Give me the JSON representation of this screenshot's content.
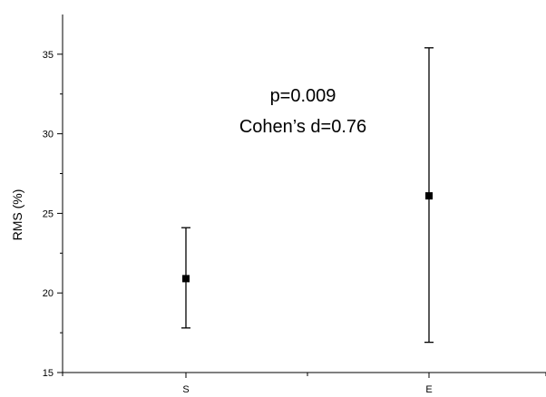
{
  "chart_data": {
    "type": "scatter",
    "title": "",
    "xlabel": "",
    "ylabel": "RMS (%)",
    "categories": [
      "S",
      "E"
    ],
    "ylim": [
      15,
      37
    ],
    "yticks": [
      15,
      20,
      25,
      30,
      35
    ],
    "grid": false,
    "series": [
      {
        "points": [
          {
            "x": "S",
            "y": 20.9,
            "err_low": 17.8,
            "err_high": 24.1
          },
          {
            "x": "E",
            "y": 26.1,
            "err_low": 16.9,
            "err_high": 35.4
          }
        ],
        "color": "#000000",
        "marker": "square"
      }
    ],
    "annotations": [
      "p=0.009",
      "Cohen’s d=0.76"
    ]
  }
}
